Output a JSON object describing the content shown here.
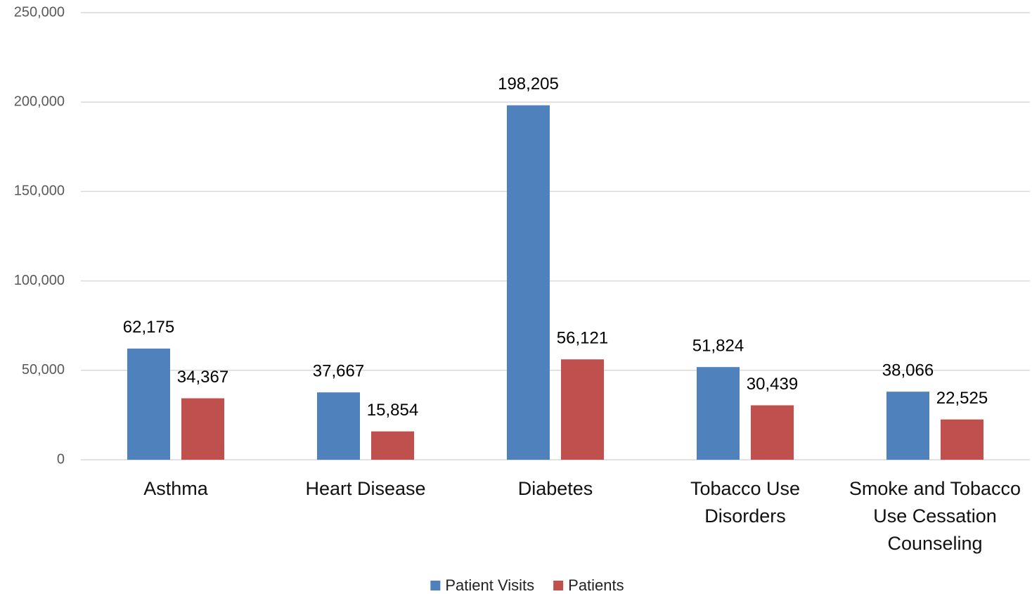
{
  "chart_data": {
    "type": "bar",
    "categories": [
      "Asthma",
      "Heart Disease",
      "Diabetes",
      "Tobacco Use Disorders",
      "Smoke and Tobacco Use Cessation Counseling"
    ],
    "series": [
      {
        "name": "Patient Visits",
        "color": "#4f81bd",
        "values": [
          62175,
          37667,
          198205,
          51824,
          38066
        ],
        "value_labels": [
          "62,175",
          "37,667",
          "198,205",
          "51,824",
          "38,066"
        ]
      },
      {
        "name": "Patients",
        "color": "#c0504d",
        "values": [
          34367,
          15854,
          56121,
          30439,
          22525
        ],
        "value_labels": [
          "34,367",
          "15,854",
          "56,121",
          "30,439",
          "22,525"
        ]
      }
    ],
    "ylim": [
      0,
      250000
    ],
    "yticks": [
      0,
      {
        "value": 50000,
        "label": "50,000"
      },
      {
        "value": 100000,
        "label": "100,000"
      },
      {
        "value": 150000,
        "label": "150,000"
      },
      {
        "value": 200000,
        "label": "200,000"
      },
      {
        "value": 250000,
        "label": "250,000"
      }
    ],
    "grid": true,
    "legend": "bottom"
  }
}
